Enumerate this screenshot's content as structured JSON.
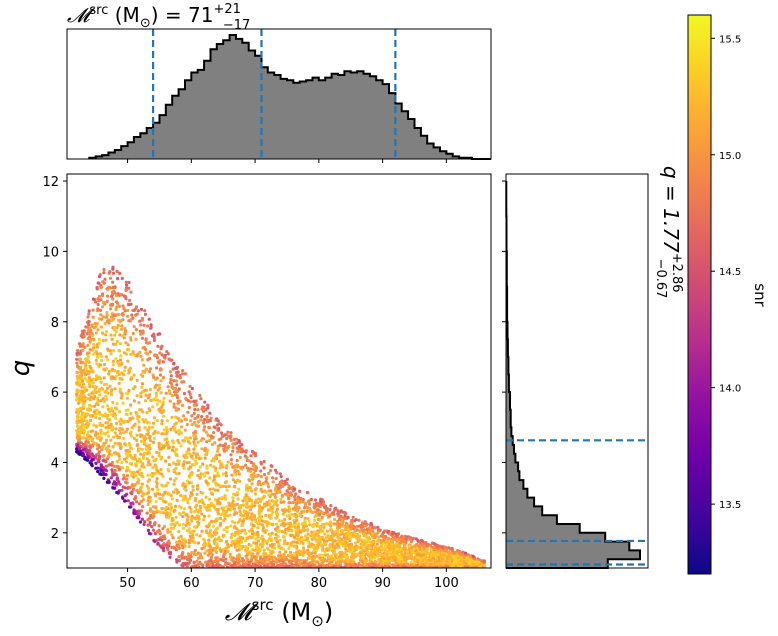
{
  "chart_data": [
    {
      "type": "histogram",
      "panel": "top-marginal",
      "title": "𝓜src (M☉) = 71+21−17",
      "title_parts": {
        "symbol": "𝓜",
        "sup": "src",
        "unit_open": " (M",
        "unit_sub": "⊙",
        "unit_close": ") = 71",
        "upper": "+21",
        "lower": "−17"
      },
      "x": [
        44,
        45,
        46,
        47,
        48,
        49,
        50,
        51,
        52,
        53,
        54,
        55,
        56,
        57,
        58,
        59,
        60,
        61,
        62,
        63,
        64,
        65,
        66,
        67,
        68,
        69,
        70,
        71,
        72,
        73,
        74,
        75,
        76,
        77,
        78,
        79,
        80,
        81,
        82,
        83,
        84,
        85,
        86,
        87,
        88,
        89,
        90,
        91,
        92,
        93,
        94,
        95,
        96,
        97,
        98,
        99,
        100,
        101,
        102,
        103,
        104,
        105,
        106
      ],
      "density": [
        0.01,
        0.02,
        0.03,
        0.05,
        0.07,
        0.1,
        0.13,
        0.17,
        0.2,
        0.24,
        0.28,
        0.34,
        0.42,
        0.49,
        0.54,
        0.61,
        0.67,
        0.69,
        0.76,
        0.85,
        0.89,
        0.92,
        0.96,
        0.93,
        0.9,
        0.84,
        0.8,
        0.71,
        0.67,
        0.65,
        0.62,
        0.61,
        0.59,
        0.6,
        0.61,
        0.63,
        0.61,
        0.63,
        0.66,
        0.65,
        0.68,
        0.67,
        0.68,
        0.66,
        0.64,
        0.61,
        0.58,
        0.51,
        0.43,
        0.37,
        0.31,
        0.24,
        0.18,
        0.12,
        0.09,
        0.06,
        0.04,
        0.02,
        0.01,
        0.01,
        0.0,
        0.0,
        0.0
      ],
      "quantile_lines": [
        54,
        71,
        92
      ],
      "xlim": [
        40.5,
        107
      ]
    },
    {
      "type": "scatter",
      "panel": "main",
      "xlabel": "𝓜src (M☉)",
      "xlabel_parts": {
        "symbol": "𝓜",
        "sup": "src",
        "unit_open": " (M",
        "unit_sub": "⊙",
        "unit_close": ")"
      },
      "ylabel": "q",
      "xlim": [
        40.5,
        107
      ],
      "ylim": [
        1,
        12.2
      ],
      "xticks": [
        50,
        60,
        70,
        80,
        90,
        100
      ],
      "yticks": [
        2,
        4,
        6,
        8,
        10,
        12
      ],
      "color_by": "snr",
      "envelope": {
        "x": [
          42,
          44,
          46,
          48,
          50,
          52,
          54,
          56,
          58,
          60,
          62,
          64,
          66,
          68,
          70,
          72,
          74,
          76,
          78,
          80,
          82,
          84,
          86,
          88,
          90,
          92,
          94,
          96,
          98,
          100,
          102,
          104,
          106
        ],
        "q_upper": [
          7.2,
          8.4,
          9.6,
          9.6,
          9.2,
          8.5,
          8.0,
          7.4,
          6.8,
          6.3,
          5.8,
          5.3,
          4.9,
          4.6,
          4.3,
          4.0,
          3.7,
          3.4,
          3.2,
          3.0,
          2.8,
          2.6,
          2.4,
          2.3,
          2.1,
          2.0,
          1.9,
          1.8,
          1.7,
          1.6,
          1.5,
          1.35,
          1.2
        ],
        "q_lower": [
          4.3,
          4.0,
          3.6,
          3.2,
          2.8,
          2.3,
          1.8,
          1.4,
          1.1,
          1.0,
          1.0,
          1.0,
          1.0,
          1.0,
          1.0,
          1.0,
          1.0,
          1.0,
          1.0,
          1.0,
          1.0,
          1.0,
          1.0,
          1.0,
          1.0,
          1.0,
          1.0,
          1.0,
          1.0,
          1.0,
          1.0,
          1.0,
          1.0
        ],
        "snr_peak": 15.5
      }
    },
    {
      "type": "histogram",
      "panel": "right-marginal",
      "title": "q = 1.77+2.86−0.67",
      "title_parts": {
        "head": "q = 1.77",
        "upper": "+2.86",
        "lower": "−0.67"
      },
      "q_bins": [
        1.0,
        1.25,
        1.5,
        1.75,
        2.0,
        2.25,
        2.5,
        2.75,
        3.0,
        3.25,
        3.5,
        3.75,
        4.0,
        4.25,
        4.5,
        4.75,
        5.0,
        5.5,
        6.0,
        6.5,
        7.0,
        7.5,
        8.0,
        9.0,
        10.0,
        11.0,
        12.0
      ],
      "density": [
        0.76,
        1.0,
        0.92,
        0.74,
        0.55,
        0.38,
        0.27,
        0.21,
        0.16,
        0.13,
        0.1,
        0.09,
        0.07,
        0.06,
        0.05,
        0.04,
        0.035,
        0.03,
        0.022,
        0.018,
        0.014,
        0.011,
        0.008,
        0.006,
        0.004,
        0.002
      ],
      "quantile_lines": [
        1.1,
        1.77,
        4.63
      ],
      "ylim": [
        1,
        12.2
      ]
    },
    {
      "type": "colorbar",
      "panel": "colorbar",
      "label": "snr",
      "range": [
        13.2,
        15.6
      ],
      "ticks": [
        "13.5",
        "14.0",
        "14.5",
        "15.0",
        "15.5"
      ],
      "tick_values": [
        13.5,
        14.0,
        14.5,
        15.0,
        15.5
      ],
      "colormap": "plasma"
    }
  ],
  "colors": {
    "hist_fill": "#808080",
    "hist_edge": "#000000",
    "quantile_line": "#1f77b4",
    "plasma": [
      "#0d0887",
      "#41049d",
      "#6a00a8",
      "#8f0da4",
      "#b12a90",
      "#cc4778",
      "#e16462",
      "#f2844b",
      "#fca636",
      "#fcce25",
      "#f0f921"
    ]
  }
}
